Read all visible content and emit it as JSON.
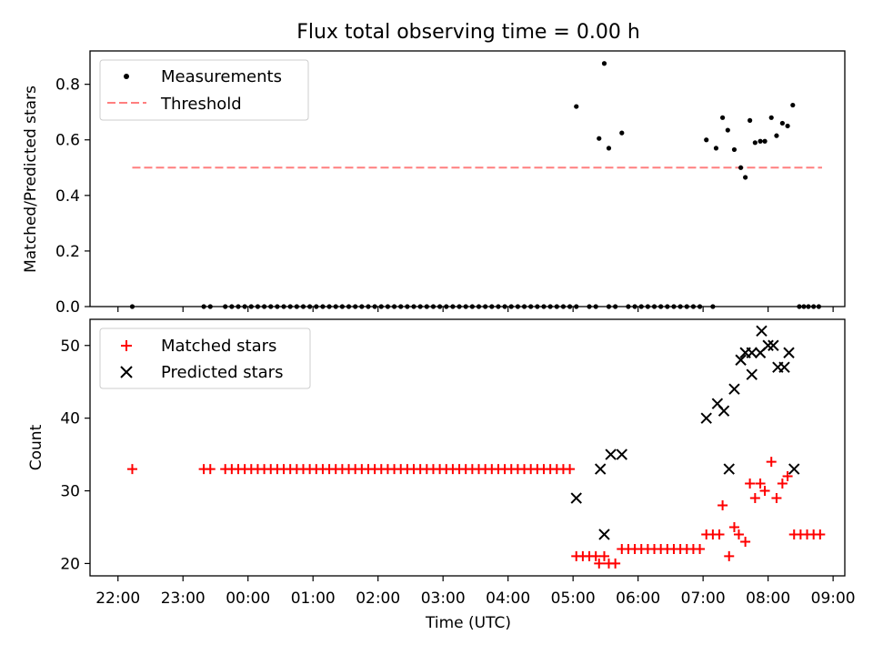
{
  "figure": {
    "title": "Flux total observing time = 0.00 h",
    "xlabel": "Time (UTC)"
  },
  "colors": {
    "measurement": "#000000",
    "threshold": "#ff7f7f",
    "matched": "#ff0000",
    "predicted": "#000000"
  },
  "chart_data": [
    {
      "type": "scatter",
      "panel": "top",
      "ylabel": "Matched/Predicted stars",
      "x_unit": "hours since 22:00 UTC",
      "xlim": [
        -0.43,
        11.18
      ],
      "ylim": [
        0,
        0.92
      ],
      "yticks": [
        0.0,
        0.2,
        0.4,
        0.6,
        0.8
      ],
      "ytick_labels": [
        "0.0",
        "0.2",
        "0.4",
        "0.6",
        "0.8"
      ],
      "legend_position": "top-left",
      "legend": [
        "Measurements",
        "Threshold"
      ],
      "threshold": {
        "name": "Threshold",
        "value": 0.5,
        "x_range": [
          0.22,
          10.83
        ]
      },
      "series": [
        {
          "name": "Measurements",
          "points": [
            [
              0.22,
              0
            ],
            [
              1.32,
              0
            ],
            [
              1.42,
              0
            ],
            [
              1.65,
              0
            ],
            [
              1.75,
              0
            ],
            [
              1.85,
              0
            ],
            [
              1.95,
              0
            ],
            [
              2.05,
              0
            ],
            [
              2.15,
              0
            ],
            [
              2.25,
              0
            ],
            [
              2.35,
              0
            ],
            [
              2.45,
              0
            ],
            [
              2.55,
              0
            ],
            [
              2.65,
              0
            ],
            [
              2.75,
              0
            ],
            [
              2.85,
              0
            ],
            [
              2.95,
              0
            ],
            [
              3.05,
              0
            ],
            [
              3.15,
              0
            ],
            [
              3.25,
              0
            ],
            [
              3.35,
              0
            ],
            [
              3.45,
              0
            ],
            [
              3.55,
              0
            ],
            [
              3.65,
              0
            ],
            [
              3.75,
              0
            ],
            [
              3.85,
              0
            ],
            [
              3.95,
              0
            ],
            [
              4.05,
              0
            ],
            [
              4.15,
              0
            ],
            [
              4.25,
              0
            ],
            [
              4.35,
              0
            ],
            [
              4.45,
              0
            ],
            [
              4.55,
              0
            ],
            [
              4.65,
              0
            ],
            [
              4.75,
              0
            ],
            [
              4.85,
              0
            ],
            [
              4.95,
              0
            ],
            [
              5.05,
              0
            ],
            [
              5.15,
              0
            ],
            [
              5.25,
              0
            ],
            [
              5.35,
              0
            ],
            [
              5.45,
              0
            ],
            [
              5.55,
              0
            ],
            [
              5.65,
              0
            ],
            [
              5.75,
              0
            ],
            [
              5.85,
              0
            ],
            [
              5.95,
              0
            ],
            [
              6.05,
              0
            ],
            [
              6.15,
              0
            ],
            [
              6.25,
              0
            ],
            [
              6.35,
              0
            ],
            [
              6.45,
              0
            ],
            [
              6.55,
              0
            ],
            [
              6.65,
              0
            ],
            [
              6.75,
              0
            ],
            [
              6.85,
              0
            ],
            [
              6.95,
              0
            ],
            [
              7.05,
              0
            ],
            [
              7.25,
              0
            ],
            [
              7.35,
              0
            ],
            [
              7.55,
              0
            ],
            [
              7.05,
              0.72
            ],
            [
              7.4,
              0.605
            ],
            [
              7.48,
              0.875
            ],
            [
              7.55,
              0.57
            ],
            [
              7.75,
              0.625
            ],
            [
              7.65,
              0
            ],
            [
              7.85,
              0
            ],
            [
              7.95,
              0
            ],
            [
              8.05,
              0
            ],
            [
              8.15,
              0
            ],
            [
              8.25,
              0
            ],
            [
              8.35,
              0
            ],
            [
              8.45,
              0
            ],
            [
              8.55,
              0
            ],
            [
              8.65,
              0
            ],
            [
              8.75,
              0
            ],
            [
              8.85,
              0
            ],
            [
              8.95,
              0
            ],
            [
              9.15,
              0
            ],
            [
              9.05,
              0.6
            ],
            [
              9.2,
              0.57
            ],
            [
              9.3,
              0.68
            ],
            [
              9.38,
              0.635
            ],
            [
              9.48,
              0.565
            ],
            [
              9.58,
              0.5
            ],
            [
              9.65,
              0.465
            ],
            [
              9.72,
              0.67
            ],
            [
              9.8,
              0.59
            ],
            [
              9.88,
              0.595
            ],
            [
              9.95,
              0.595
            ],
            [
              10.05,
              0.68
            ],
            [
              10.13,
              0.615
            ],
            [
              10.22,
              0.66
            ],
            [
              10.3,
              0.65
            ],
            [
              10.38,
              0.725
            ],
            [
              10.48,
              0
            ],
            [
              10.55,
              0
            ],
            [
              10.62,
              0
            ],
            [
              10.7,
              0
            ],
            [
              10.78,
              0
            ]
          ]
        }
      ]
    },
    {
      "type": "scatter",
      "panel": "bottom",
      "ylabel": "Count",
      "x_unit": "hours since 22:00 UTC",
      "xlim": [
        -0.43,
        11.18
      ],
      "ylim": [
        18.3,
        53.6
      ],
      "yticks": [
        20,
        30,
        40,
        50
      ],
      "ytick_labels": [
        "20",
        "30",
        "40",
        "50"
      ],
      "xticks": [
        0,
        1,
        2,
        3,
        4,
        5,
        6,
        7,
        8,
        9,
        10,
        11
      ],
      "xtick_labels": [
        "22:00",
        "23:00",
        "00:00",
        "01:00",
        "02:00",
        "03:00",
        "04:00",
        "05:00",
        "06:00",
        "07:00",
        "08:00",
        "09:00"
      ],
      "legend_position": "top-left",
      "legend": [
        "Matched stars",
        "Predicted stars"
      ],
      "series": [
        {
          "name": "Matched stars",
          "marker": "plus",
          "points": [
            [
              0.22,
              33
            ],
            [
              1.32,
              33
            ],
            [
              1.42,
              33
            ],
            [
              1.65,
              33
            ],
            [
              1.75,
              33
            ],
            [
              1.85,
              33
            ],
            [
              1.95,
              33
            ],
            [
              2.05,
              33
            ],
            [
              2.15,
              33
            ],
            [
              2.25,
              33
            ],
            [
              2.35,
              33
            ],
            [
              2.45,
              33
            ],
            [
              2.55,
              33
            ],
            [
              2.65,
              33
            ],
            [
              2.75,
              33
            ],
            [
              2.85,
              33
            ],
            [
              2.95,
              33
            ],
            [
              3.05,
              33
            ],
            [
              3.15,
              33
            ],
            [
              3.25,
              33
            ],
            [
              3.35,
              33
            ],
            [
              3.45,
              33
            ],
            [
              3.55,
              33
            ],
            [
              3.65,
              33
            ],
            [
              3.75,
              33
            ],
            [
              3.85,
              33
            ],
            [
              3.95,
              33
            ],
            [
              4.05,
              33
            ],
            [
              4.15,
              33
            ],
            [
              4.25,
              33
            ],
            [
              4.35,
              33
            ],
            [
              4.45,
              33
            ],
            [
              4.55,
              33
            ],
            [
              4.65,
              33
            ],
            [
              4.75,
              33
            ],
            [
              4.85,
              33
            ],
            [
              4.95,
              33
            ],
            [
              5.05,
              33
            ],
            [
              5.15,
              33
            ],
            [
              5.25,
              33
            ],
            [
              5.35,
              33
            ],
            [
              5.45,
              33
            ],
            [
              5.55,
              33
            ],
            [
              5.65,
              33
            ],
            [
              5.75,
              33
            ],
            [
              5.85,
              33
            ],
            [
              5.95,
              33
            ],
            [
              6.05,
              33
            ],
            [
              6.15,
              33
            ],
            [
              6.25,
              33
            ],
            [
              6.35,
              33
            ],
            [
              6.45,
              33
            ],
            [
              6.55,
              33
            ],
            [
              6.65,
              33
            ],
            [
              6.75,
              33
            ],
            [
              6.85,
              33
            ],
            [
              6.95,
              33
            ],
            [
              7.05,
              21
            ],
            [
              7.15,
              21
            ],
            [
              7.25,
              21
            ],
            [
              7.35,
              21
            ],
            [
              7.4,
              20
            ],
            [
              7.48,
              21
            ],
            [
              7.55,
              20
            ],
            [
              7.65,
              20
            ],
            [
              7.75,
              22
            ],
            [
              7.85,
              22
            ],
            [
              7.95,
              22
            ],
            [
              8.05,
              22
            ],
            [
              8.15,
              22
            ],
            [
              8.25,
              22
            ],
            [
              8.35,
              22
            ],
            [
              8.45,
              22
            ],
            [
              8.55,
              22
            ],
            [
              8.65,
              22
            ],
            [
              8.75,
              22
            ],
            [
              8.85,
              22
            ],
            [
              8.95,
              22
            ],
            [
              9.05,
              24
            ],
            [
              9.15,
              24
            ],
            [
              9.25,
              24
            ],
            [
              9.3,
              28
            ],
            [
              9.4,
              21
            ],
            [
              9.48,
              25
            ],
            [
              9.55,
              24
            ],
            [
              9.65,
              23
            ],
            [
              9.72,
              31
            ],
            [
              9.8,
              29
            ],
            [
              9.88,
              31
            ],
            [
              9.95,
              30
            ],
            [
              10.05,
              34
            ],
            [
              10.13,
              29
            ],
            [
              10.22,
              31
            ],
            [
              10.3,
              32
            ],
            [
              10.4,
              24
            ],
            [
              10.5,
              24
            ],
            [
              10.6,
              24
            ],
            [
              10.7,
              24
            ],
            [
              10.8,
              24
            ]
          ]
        },
        {
          "name": "Predicted stars",
          "marker": "x",
          "points": [
            [
              7.05,
              29
            ],
            [
              7.42,
              33
            ],
            [
              7.48,
              24
            ],
            [
              7.58,
              35
            ],
            [
              7.75,
              35
            ],
            [
              9.05,
              40
            ],
            [
              9.22,
              42
            ],
            [
              9.32,
              41
            ],
            [
              9.4,
              33
            ],
            [
              9.48,
              44
            ],
            [
              9.58,
              48
            ],
            [
              9.65,
              49
            ],
            [
              9.75,
              46
            ],
            [
              9.75,
              49
            ],
            [
              9.88,
              49
            ],
            [
              9.9,
              52
            ],
            [
              10.0,
              50
            ],
            [
              10.08,
              50
            ],
            [
              10.15,
              47
            ],
            [
              10.25,
              47
            ],
            [
              10.32,
              49
            ],
            [
              10.4,
              33
            ]
          ]
        }
      ]
    }
  ]
}
